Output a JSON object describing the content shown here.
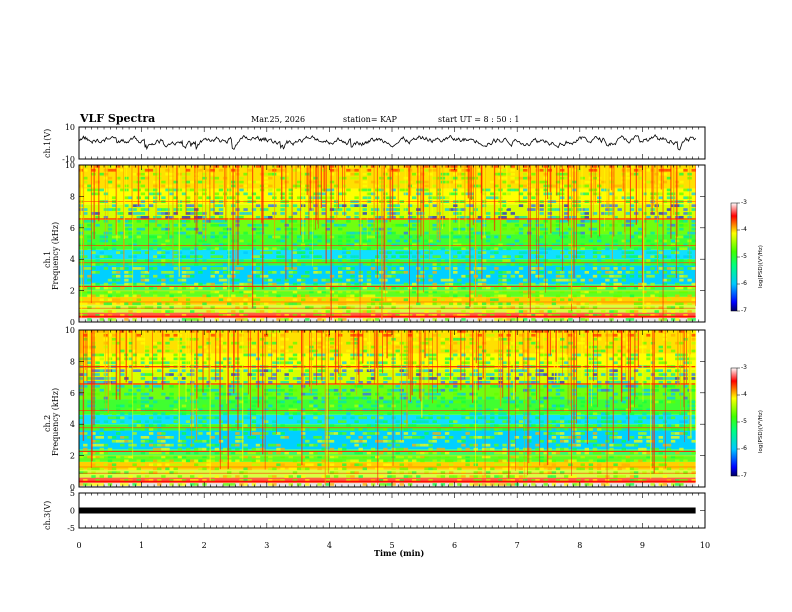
{
  "header": {
    "title": "VLF Spectra",
    "date": "Mar.25, 2026",
    "station": "station= KAP",
    "start": "start  UT  =   8  : 50 : 1"
  },
  "panels": {
    "ch1_wave_label": "ch.1(V)",
    "ch1_spec_label": "ch.1",
    "ch2_spec_label": "ch.2",
    "freq_label": "Frequency  (kHz)",
    "ch3_label": "ch.3(V)",
    "colorbar_label": "log(PSD)(V²/Hz)"
  },
  "chart_data": [
    {
      "type": "line",
      "name": "ch1-waveform",
      "ylabel": "ch.1(V)",
      "ylim": [
        -10,
        10
      ],
      "yticks": [
        "10",
        "-10"
      ],
      "xlim": [
        0,
        10
      ],
      "description": "noisy waveform around ~2 V"
    },
    {
      "type": "heatmap",
      "name": "ch1-spectrogram",
      "ylabel": "Frequency (kHz)",
      "ylim": [
        0,
        10
      ],
      "yticks": [
        "0",
        "2",
        "4",
        "6",
        "8",
        "10"
      ],
      "xlim": [
        0,
        9.85
      ],
      "colorbar": {
        "label": "log(PSD)(V²/Hz)",
        "range": [
          -7,
          -3
        ],
        "ticks": [
          "-3",
          "-4",
          "-5",
          "-6",
          "-7"
        ]
      }
    },
    {
      "type": "heatmap",
      "name": "ch2-spectrogram",
      "ylabel": "Frequency (kHz)",
      "ylim": [
        0,
        10
      ],
      "yticks": [
        "0",
        "2",
        "4",
        "6",
        "8",
        "10"
      ],
      "xlim": [
        0,
        9.85
      ],
      "colorbar": {
        "label": "log(PSD)(V²/Hz)",
        "range": [
          -7,
          -3
        ],
        "ticks": [
          "-3",
          "-4",
          "-5",
          "-6",
          "-7"
        ]
      }
    },
    {
      "type": "line",
      "name": "ch3-waveform",
      "ylabel": "ch.3(V)",
      "ylim": [
        -5,
        5
      ],
      "yticks": [
        "5",
        "0",
        "-5"
      ],
      "level": 0,
      "xlim": [
        0,
        9.85
      ]
    }
  ],
  "xaxis": {
    "label": "Time  (min)",
    "ticks": [
      "0",
      "1",
      "2",
      "3",
      "4",
      "5",
      "6",
      "7",
      "8",
      "9",
      "10"
    ],
    "range": [
      0,
      10
    ]
  },
  "colors": {
    "frame": "#000000",
    "trace": "#000000"
  }
}
